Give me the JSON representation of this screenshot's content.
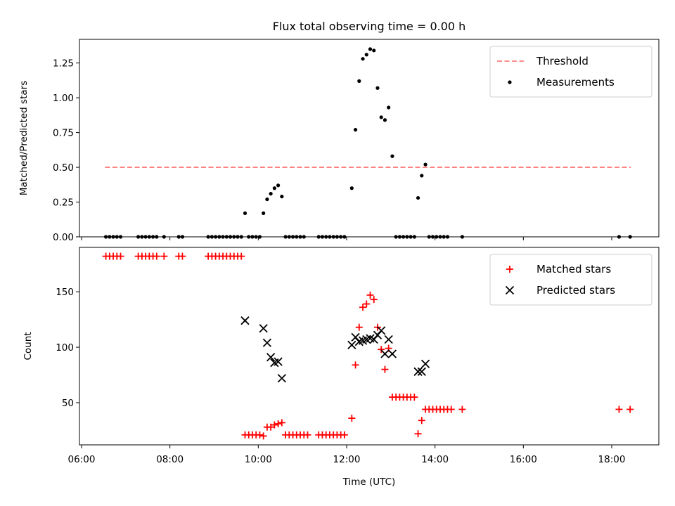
{
  "chart_data": [
    {
      "type": "scatter",
      "title": "Flux total observing time = 0.00 h",
      "ylabel": "Matched/Predicted stars",
      "xlabel": "",
      "xlim": [
        "06:00",
        "19:00"
      ],
      "ylim": [
        0,
        1.42
      ],
      "y_ticks": [
        "0.00",
        "0.25",
        "0.50",
        "0.75",
        "1.00",
        "1.25"
      ],
      "legend_position": "top-right",
      "threshold": {
        "name": "Threshold",
        "y": 0.5,
        "x_range": [
          "06:32",
          "18:26"
        ],
        "color": "#ff7f7f",
        "style": "dashed"
      },
      "series": [
        {
          "name": "Measurements",
          "marker": "dot",
          "color": "#000000",
          "points": [
            [
              "06:33",
              0
            ],
            [
              "06:38",
              0
            ],
            [
              "06:43",
              0
            ],
            [
              "06:48",
              0
            ],
            [
              "06:53",
              0
            ],
            [
              "07:17",
              0
            ],
            [
              "07:22",
              0
            ],
            [
              "07:27",
              0
            ],
            [
              "07:32",
              0
            ],
            [
              "07:37",
              0
            ],
            [
              "07:42",
              0
            ],
            [
              "07:52",
              0
            ],
            [
              "08:12",
              0
            ],
            [
              "08:17",
              0
            ],
            [
              "08:52",
              0
            ],
            [
              "08:57",
              0
            ],
            [
              "09:02",
              0
            ],
            [
              "09:07",
              0
            ],
            [
              "09:12",
              0
            ],
            [
              "09:17",
              0
            ],
            [
              "09:22",
              0
            ],
            [
              "09:27",
              0
            ],
            [
              "09:32",
              0
            ],
            [
              "09:37",
              0
            ],
            [
              "09:42",
              0.17
            ],
            [
              "09:47",
              0
            ],
            [
              "09:52",
              0
            ],
            [
              "09:57",
              0
            ],
            [
              "10:02",
              0
            ],
            [
              "10:07",
              0.17
            ],
            [
              "10:12",
              0.27
            ],
            [
              "10:17",
              0.31
            ],
            [
              "10:22",
              0.35
            ],
            [
              "10:27",
              0.37
            ],
            [
              "10:32",
              0.29
            ],
            [
              "10:37",
              0
            ],
            [
              "10:42",
              0
            ],
            [
              "10:47",
              0
            ],
            [
              "10:52",
              0
            ],
            [
              "10:57",
              0
            ],
            [
              "11:02",
              0
            ],
            [
              "11:22",
              0
            ],
            [
              "11:27",
              0
            ],
            [
              "11:32",
              0
            ],
            [
              "11:37",
              0
            ],
            [
              "11:42",
              0
            ],
            [
              "11:47",
              0
            ],
            [
              "11:52",
              0
            ],
            [
              "11:57",
              0
            ],
            [
              "12:07",
              0.35
            ],
            [
              "12:12",
              0.77
            ],
            [
              "12:17",
              1.12
            ],
            [
              "12:22",
              1.28
            ],
            [
              "12:27",
              1.31
            ],
            [
              "12:32",
              1.35
            ],
            [
              "12:37",
              1.34
            ],
            [
              "12:42",
              1.07
            ],
            [
              "12:47",
              0.86
            ],
            [
              "12:52",
              0.84
            ],
            [
              "12:57",
              0.93
            ],
            [
              "13:02",
              0.58
            ],
            [
              "13:07",
              0
            ],
            [
              "13:12",
              0
            ],
            [
              "13:17",
              0
            ],
            [
              "13:22",
              0
            ],
            [
              "13:27",
              0
            ],
            [
              "13:32",
              0
            ],
            [
              "13:37",
              0.28
            ],
            [
              "13:42",
              0.44
            ],
            [
              "13:47",
              0.52
            ],
            [
              "13:52",
              0
            ],
            [
              "13:57",
              0
            ],
            [
              "14:02",
              0
            ],
            [
              "14:07",
              0
            ],
            [
              "14:12",
              0
            ],
            [
              "14:17",
              0
            ],
            [
              "14:37",
              0
            ],
            [
              "18:10",
              0
            ],
            [
              "18:25",
              0
            ]
          ]
        }
      ]
    },
    {
      "type": "scatter",
      "title": "",
      "ylabel": "Count",
      "xlabel": "Time (UTC)",
      "xlim": [
        "06:00",
        "19:00"
      ],
      "ylim": [
        12,
        190
      ],
      "x_ticks": [
        "06:00",
        "08:00",
        "10:00",
        "12:00",
        "14:00",
        "16:00",
        "18:00"
      ],
      "y_ticks": [
        "50",
        "100",
        "150"
      ],
      "legend_position": "top-right",
      "series": [
        {
          "name": "Matched stars",
          "marker": "plus",
          "color": "#ff0000",
          "points": [
            [
              "06:33",
              182
            ],
            [
              "06:38",
              182
            ],
            [
              "06:43",
              182
            ],
            [
              "06:48",
              182
            ],
            [
              "06:53",
              182
            ],
            [
              "07:17",
              182
            ],
            [
              "07:22",
              182
            ],
            [
              "07:27",
              182
            ],
            [
              "07:32",
              182
            ],
            [
              "07:37",
              182
            ],
            [
              "07:42",
              182
            ],
            [
              "07:52",
              182
            ],
            [
              "08:12",
              182
            ],
            [
              "08:17",
              182
            ],
            [
              "08:52",
              182
            ],
            [
              "08:57",
              182
            ],
            [
              "09:02",
              182
            ],
            [
              "09:07",
              182
            ],
            [
              "09:12",
              182
            ],
            [
              "09:17",
              182
            ],
            [
              "09:22",
              182
            ],
            [
              "09:27",
              182
            ],
            [
              "09:32",
              182
            ],
            [
              "09:37",
              182
            ],
            [
              "09:42",
              21
            ],
            [
              "09:47",
              21
            ],
            [
              "09:52",
              21
            ],
            [
              "09:57",
              21
            ],
            [
              "10:02",
              21
            ],
            [
              "10:07",
              20
            ],
            [
              "10:12",
              28
            ],
            [
              "10:17",
              28
            ],
            [
              "10:22",
              30
            ],
            [
              "10:27",
              31
            ],
            [
              "10:32",
              32
            ],
            [
              "10:37",
              21
            ],
            [
              "10:42",
              21
            ],
            [
              "10:47",
              21
            ],
            [
              "10:52",
              21
            ],
            [
              "10:57",
              21
            ],
            [
              "11:02",
              21
            ],
            [
              "11:07",
              21
            ],
            [
              "11:22",
              21
            ],
            [
              "11:27",
              21
            ],
            [
              "11:32",
              21
            ],
            [
              "11:37",
              21
            ],
            [
              "11:42",
              21
            ],
            [
              "11:47",
              21
            ],
            [
              "11:52",
              21
            ],
            [
              "11:57",
              21
            ],
            [
              "12:07",
              36
            ],
            [
              "12:12",
              84
            ],
            [
              "12:17",
              118
            ],
            [
              "12:22",
              136
            ],
            [
              "12:27",
              139
            ],
            [
              "12:32",
              147
            ],
            [
              "12:37",
              143
            ],
            [
              "12:42",
              118
            ],
            [
              "12:47",
              98
            ],
            [
              "12:52",
              80
            ],
            [
              "12:57",
              99
            ],
            [
              "13:02",
              55
            ],
            [
              "13:07",
              55
            ],
            [
              "13:12",
              55
            ],
            [
              "13:17",
              55
            ],
            [
              "13:22",
              55
            ],
            [
              "13:27",
              55
            ],
            [
              "13:32",
              55
            ],
            [
              "13:37",
              22
            ],
            [
              "13:42",
              34
            ],
            [
              "13:47",
              44
            ],
            [
              "13:52",
              44
            ],
            [
              "13:57",
              44
            ],
            [
              "14:02",
              44
            ],
            [
              "14:07",
              44
            ],
            [
              "14:12",
              44
            ],
            [
              "14:17",
              44
            ],
            [
              "14:22",
              44
            ],
            [
              "14:37",
              44
            ],
            [
              "18:10",
              44
            ],
            [
              "18:25",
              44
            ]
          ]
        },
        {
          "name": "Predicted stars",
          "marker": "x",
          "color": "#000000",
          "points": [
            [
              "09:42",
              124
            ],
            [
              "10:07",
              117
            ],
            [
              "10:12",
              104
            ],
            [
              "10:17",
              91
            ],
            [
              "10:22",
              86
            ],
            [
              "10:27",
              87
            ],
            [
              "10:32",
              72
            ],
            [
              "12:07",
              102
            ],
            [
              "12:12",
              109
            ],
            [
              "12:17",
              105
            ],
            [
              "12:22",
              106
            ],
            [
              "12:27",
              107
            ],
            [
              "12:32",
              108
            ],
            [
              "12:37",
              107
            ],
            [
              "12:42",
              111
            ],
            [
              "12:47",
              115
            ],
            [
              "12:52",
              94
            ],
            [
              "12:57",
              107
            ],
            [
              "13:02",
              94
            ],
            [
              "13:37",
              78
            ],
            [
              "13:42",
              78
            ],
            [
              "13:47",
              85
            ]
          ]
        }
      ]
    }
  ]
}
